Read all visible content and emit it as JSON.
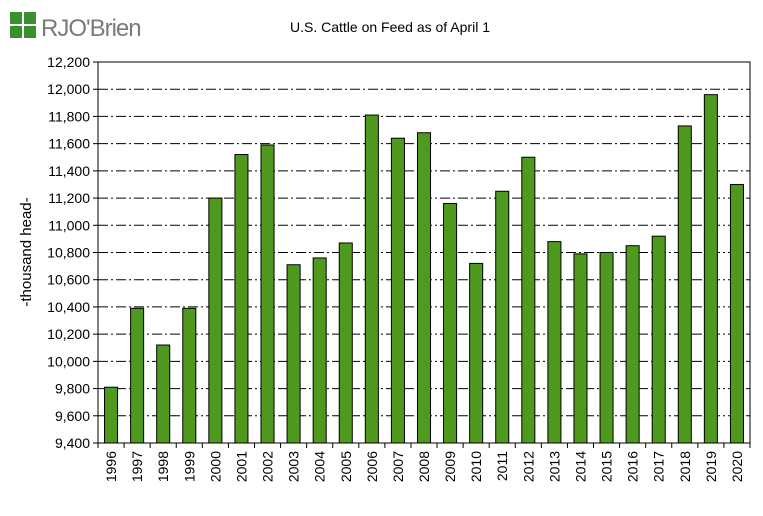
{
  "brand": {
    "logo_text": "RJO'Brien",
    "logo_color": "#3a8f2e"
  },
  "chart_data": {
    "type": "bar",
    "title": "U.S. Cattle on Feed as of April 1",
    "xlabel": "",
    "ylabel": "-thousand head-",
    "ylim": [
      9400,
      12200
    ],
    "yticks": [
      9400,
      9600,
      9800,
      10000,
      10200,
      10400,
      10600,
      10800,
      11000,
      11200,
      11400,
      11600,
      11800,
      12000,
      12200
    ],
    "ytick_labels": [
      "9,400",
      "9,600",
      "9,800",
      "10,000",
      "10,200",
      "10,400",
      "10,600",
      "10,800",
      "11,000",
      "11,200",
      "11,400",
      "11,600",
      "11,800",
      "12,000",
      "12,200"
    ],
    "grid": true,
    "bar_color": "#4f9a1e",
    "categories": [
      "1996",
      "1997",
      "1998",
      "1999",
      "2000",
      "2001",
      "2002",
      "2003",
      "2004",
      "2005",
      "2006",
      "2007",
      "2008",
      "2009",
      "2010",
      "2011",
      "2012",
      "2013",
      "2014",
      "2015",
      "2016",
      "2017",
      "2018",
      "2019",
      "2020"
    ],
    "values": [
      9810,
      10390,
      10120,
      10390,
      11200,
      11520,
      11590,
      10710,
      10760,
      10870,
      11810,
      11640,
      11680,
      11160,
      10720,
      11250,
      11500,
      10880,
      10790,
      10800,
      10850,
      10920,
      11730,
      11960,
      11300
    ]
  }
}
